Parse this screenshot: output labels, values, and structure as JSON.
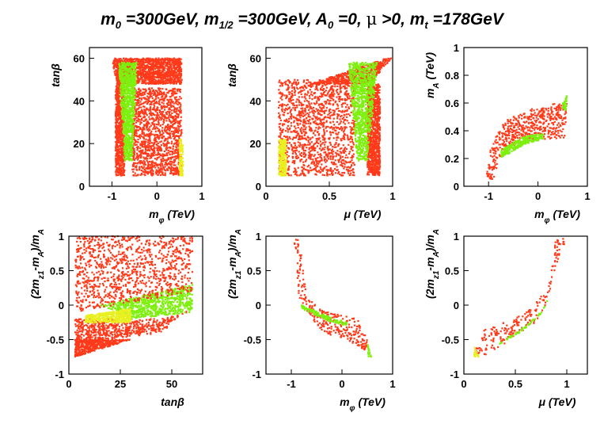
{
  "figure": {
    "title_parts": [
      "m",
      "0",
      " =300GeV, m",
      "1/2",
      " =300GeV, A",
      "0",
      " =0, ",
      "μ",
      " >0, m",
      "t",
      " =178GeV"
    ],
    "color_scale": [
      "#ff3a1a",
      "#ff6a1a",
      "#ffb020",
      "#e8f020",
      "#7ef010"
    ]
  },
  "chart_data": [
    {
      "id": "p1",
      "type": "scatter",
      "xlabel": "m_φ (TeV)",
      "ylabel": "tanβ",
      "xlim": [
        -1.5,
        1
      ],
      "ylim": [
        0,
        65
      ],
      "xticks": [
        -1,
        0,
        1
      ],
      "xtick_labels": [
        "-1",
        "0",
        "1"
      ],
      "yticks": [
        0,
        20,
        40,
        60
      ],
      "ytick_labels": [
        "0",
        "20",
        "40",
        "60"
      ],
      "regions": [
        {
          "name": "upper band",
          "color": "#ff3a1a",
          "polygon": [
            [
              -1.0,
              60
            ],
            [
              0.55,
              60
            ],
            [
              0.55,
              48
            ],
            [
              -0.9,
              48
            ]
          ]
        },
        {
          "name": "left column",
          "color": "#ff3a1a",
          "polygon": [
            [
              -0.92,
              5
            ],
            [
              -0.72,
              5
            ],
            [
              -0.72,
              48
            ],
            [
              -0.92,
              48
            ]
          ]
        },
        {
          "name": "right block",
          "color": "#ff3a1a",
          "polygon": [
            [
              -0.55,
              5
            ],
            [
              0.55,
              5
            ],
            [
              0.55,
              46
            ],
            [
              -0.55,
              46
            ]
          ]
        },
        {
          "name": "light funnel",
          "color": "#7ef010",
          "polygon": [
            [
              -0.72,
              12
            ],
            [
              -0.55,
              12
            ],
            [
              -0.45,
              58
            ],
            [
              -0.85,
              58
            ]
          ]
        },
        {
          "name": "right edge",
          "color": "#e8f020",
          "polygon": [
            [
              0.5,
              5
            ],
            [
              0.58,
              5
            ],
            [
              0.58,
              22
            ],
            [
              0.5,
              22
            ]
          ]
        }
      ]
    },
    {
      "id": "p2",
      "type": "scatter",
      "xlabel": "μ (TeV)",
      "ylabel": "tanβ",
      "xlim": [
        0,
        1
      ],
      "ylim": [
        0,
        65
      ],
      "xticks": [
        0,
        0.5,
        1
      ],
      "xtick_labels": [
        "0",
        "0.5",
        "1"
      ],
      "yticks": [
        0,
        20,
        40,
        60
      ],
      "ytick_labels": [
        "0",
        "20",
        "40",
        "60"
      ],
      "regions": [
        {
          "name": "left block",
          "color": "#ff3a1a",
          "polygon": [
            [
              0.1,
              5
            ],
            [
              0.7,
              5
            ],
            [
              0.7,
              50
            ],
            [
              0.1,
              50
            ]
          ]
        },
        {
          "name": "upper band",
          "color": "#ff3a1a",
          "polygon": [
            [
              0.35,
              48
            ],
            [
              0.95,
              60
            ],
            [
              0.99,
              60
            ],
            [
              0.82,
              48
            ]
          ]
        },
        {
          "name": "right column",
          "color": "#ff3a1a",
          "polygon": [
            [
              0.8,
              5
            ],
            [
              0.9,
              5
            ],
            [
              0.9,
              48
            ],
            [
              0.8,
              48
            ]
          ]
        },
        {
          "name": "light funnel",
          "color": "#7ef010",
          "polygon": [
            [
              0.72,
              12
            ],
            [
              0.8,
              12
            ],
            [
              0.88,
              58
            ],
            [
              0.65,
              58
            ]
          ]
        },
        {
          "name": "left edge",
          "color": "#e8f020",
          "polygon": [
            [
              0.1,
              5
            ],
            [
              0.16,
              5
            ],
            [
              0.16,
              22
            ],
            [
              0.1,
              22
            ]
          ]
        }
      ]
    },
    {
      "id": "p3",
      "type": "scatter",
      "xlabel": "m_φ (TeV)",
      "ylabel": "m_A (TeV)",
      "xlim": [
        -1.5,
        1
      ],
      "ylim": [
        0,
        1
      ],
      "xticks": [
        -1,
        0,
        1
      ],
      "xtick_labels": [
        "-1",
        "0",
        "1"
      ],
      "yticks": [
        0,
        0.2,
        0.4,
        0.6,
        0.8,
        1
      ],
      "ytick_labels": [
        "0",
        "0.2",
        "0.4",
        "0.6",
        "0.8",
        "1"
      ],
      "regions": [
        {
          "name": "main band",
          "color": "#ff3a1a",
          "polygon": [
            [
              -1.05,
              0.05
            ],
            [
              -0.9,
              0.05
            ],
            [
              -0.7,
              0.28
            ],
            [
              -0.2,
              0.32
            ],
            [
              0.55,
              0.35
            ],
            [
              0.58,
              0.6
            ],
            [
              0.3,
              0.6
            ],
            [
              -0.2,
              0.55
            ],
            [
              -0.65,
              0.48
            ],
            [
              -0.95,
              0.3
            ]
          ]
        },
        {
          "name": "light strip",
          "color": "#7ef010",
          "polygon": [
            [
              -0.75,
              0.2
            ],
            [
              -0.3,
              0.3
            ],
            [
              0.1,
              0.34
            ],
            [
              0.1,
              0.38
            ],
            [
              -0.3,
              0.36
            ],
            [
              -0.75,
              0.26
            ]
          ]
        },
        {
          "name": "top right",
          "color": "#7ef010",
          "polygon": [
            [
              0.5,
              0.6
            ],
            [
              0.58,
              0.65
            ],
            [
              0.58,
              0.55
            ],
            [
              0.5,
              0.55
            ]
          ]
        }
      ]
    },
    {
      "id": "p4",
      "type": "scatter",
      "xlabel": "tanβ",
      "ylabel": "(2m_z1-m_A)/m_A",
      "xlim": [
        0,
        65
      ],
      "ylim": [
        -1,
        1
      ],
      "xticks": [
        0,
        25,
        50
      ],
      "xtick_labels": [
        "0",
        "25",
        "50"
      ],
      "yticks": [
        -1,
        -0.5,
        0,
        0.5,
        1
      ],
      "ytick_labels": [
        "-1",
        "-0.5",
        "0",
        "0.5",
        "1"
      ],
      "regions": [
        {
          "name": "lower band",
          "color": "#ff3a1a",
          "polygon": [
            [
              3,
              -0.2
            ],
            [
              45,
              -0.2
            ],
            [
              58,
              -0.1
            ],
            [
              60,
              0.0
            ],
            [
              45,
              -0.4
            ],
            [
              3,
              -0.55
            ]
          ]
        },
        {
          "name": "bottom band",
          "color": "#ff3a1a",
          "polygon": [
            [
              3,
              -0.5
            ],
            [
              30,
              -0.5
            ],
            [
              3,
              -0.75
            ]
          ]
        },
        {
          "name": "light wedge",
          "color": "#7ef010",
          "polygon": [
            [
              15,
              0.0
            ],
            [
              60,
              0.3
            ],
            [
              60,
              -0.1
            ],
            [
              30,
              -0.2
            ]
          ]
        },
        {
          "name": "yellow wedge",
          "color": "#e8f020",
          "polygon": [
            [
              8,
              -0.15
            ],
            [
              30,
              -0.05
            ],
            [
              30,
              -0.25
            ],
            [
              8,
              -0.25
            ]
          ]
        },
        {
          "name": "scattered top",
          "color": "#ff3a1a",
          "polygon": [
            [
              3,
              -0.1
            ],
            [
              60,
              0.2
            ],
            [
              60,
              1.0
            ],
            [
              3,
              1.0
            ]
          ],
          "density": 0.15
        }
      ]
    },
    {
      "id": "p5",
      "type": "scatter",
      "xlabel": "m_φ (TeV)",
      "ylabel": "(2m_z1-m_A)/m_A",
      "xlim": [
        -1.5,
        1
      ],
      "ylim": [
        -1,
        1
      ],
      "xticks": [
        -1,
        0,
        1
      ],
      "xtick_labels": [
        "-1",
        "0",
        "1"
      ],
      "yticks": [
        -1,
        -0.5,
        0,
        0.5,
        1
      ],
      "ytick_labels": [
        "-1",
        "-0.5",
        "0",
        "0.5",
        "1"
      ],
      "regions": [
        {
          "name": "curve",
          "color": "#ff3a1a",
          "polygon": [
            [
              -0.95,
              1.0
            ],
            [
              -0.85,
              1.0
            ],
            [
              -0.7,
              0.1
            ],
            [
              -0.3,
              -0.1
            ],
            [
              0.3,
              -0.2
            ],
            [
              0.55,
              -0.55
            ],
            [
              0.45,
              -0.65
            ],
            [
              0.1,
              -0.5
            ],
            [
              -0.4,
              -0.4
            ],
            [
              -0.85,
              0.1
            ]
          ]
        },
        {
          "name": "light strip",
          "color": "#7ef010",
          "polygon": [
            [
              -0.8,
              0.0
            ],
            [
              -0.3,
              -0.15
            ],
            [
              0.1,
              -0.25
            ],
            [
              0.1,
              -0.3
            ],
            [
              -0.3,
              -0.22
            ],
            [
              -0.8,
              -0.05
            ]
          ]
        },
        {
          "name": "tail",
          "color": "#7ef010",
          "polygon": [
            [
              0.5,
              -0.55
            ],
            [
              0.58,
              -0.75
            ],
            [
              0.52,
              -0.75
            ]
          ]
        }
      ]
    },
    {
      "id": "p6",
      "type": "scatter",
      "xlabel": "μ (TeV)",
      "ylabel": "(2m_z1-m_A)/m_A",
      "xlim": [
        0,
        1.2
      ],
      "ylim": [
        -1,
        1
      ],
      "xticks": [
        0,
        0.5,
        1
      ],
      "xtick_labels": [
        "0",
        "0.5",
        "1"
      ],
      "yticks": [
        -1,
        -0.5,
        0,
        0.5,
        1
      ],
      "ytick_labels": [
        "-1",
        "-0.5",
        "0",
        "0.5",
        "1"
      ],
      "regions": [
        {
          "name": "curve",
          "color": "#ff3a1a",
          "polygon": [
            [
              0.1,
              -0.7
            ],
            [
              0.2,
              -0.75
            ],
            [
              0.5,
              -0.45
            ],
            [
              0.75,
              -0.2
            ],
            [
              0.85,
              0.3
            ],
            [
              1.0,
              1.0
            ],
            [
              0.9,
              1.0
            ],
            [
              0.8,
              0.2
            ],
            [
              0.55,
              -0.15
            ],
            [
              0.2,
              -0.35
            ]
          ]
        },
        {
          "name": "light strip",
          "color": "#7ef010",
          "polygon": [
            [
              0.3,
              -0.6
            ],
            [
              0.6,
              -0.3
            ],
            [
              0.78,
              -0.05
            ],
            [
              0.82,
              0.1
            ],
            [
              0.75,
              -0.12
            ],
            [
              0.55,
              -0.4
            ]
          ]
        },
        {
          "name": "low edge",
          "color": "#e8f020",
          "polygon": [
            [
              0.1,
              -0.6
            ],
            [
              0.15,
              -0.75
            ],
            [
              0.1,
              -0.75
            ]
          ]
        }
      ]
    }
  ]
}
